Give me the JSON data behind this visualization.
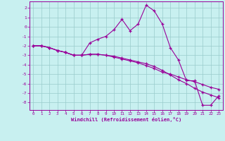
{
  "xlabel": "Windchill (Refroidissement éolien,°C)",
  "bg_color": "#c8f0f0",
  "line_color": "#990099",
  "grid_color": "#99cccc",
  "xlim": [
    -0.5,
    23.5
  ],
  "ylim": [
    -8.8,
    2.7
  ],
  "xtick_vals": [
    0,
    1,
    2,
    3,
    4,
    5,
    6,
    7,
    8,
    9,
    10,
    11,
    12,
    13,
    14,
    15,
    16,
    17,
    18,
    19,
    20,
    21,
    22,
    23
  ],
  "ytick_vals": [
    2,
    1,
    0,
    -1,
    -2,
    -3,
    -4,
    -5,
    -6,
    -7,
    -8
  ],
  "line1_x": [
    0,
    1,
    2,
    3,
    4,
    5,
    6,
    7,
    8,
    9,
    10,
    11,
    12,
    13,
    14,
    15,
    16,
    17,
    18,
    19,
    20,
    21,
    22,
    23
  ],
  "line1_y": [
    -2.0,
    -2.0,
    -2.2,
    -2.5,
    -2.7,
    -3.0,
    -3.0,
    -2.9,
    -2.9,
    -3.0,
    -3.2,
    -3.4,
    -3.6,
    -3.8,
    -4.1,
    -4.4,
    -4.8,
    -5.0,
    -5.3,
    -5.6,
    -5.8,
    -6.1,
    -6.4,
    -6.6
  ],
  "line2_x": [
    0,
    1,
    2,
    3,
    4,
    5,
    6,
    7,
    8,
    9,
    10,
    11,
    12,
    13,
    14,
    15,
    16,
    17,
    18,
    19,
    20,
    21,
    22,
    23
  ],
  "line2_y": [
    -2.0,
    -2.0,
    -2.2,
    -2.5,
    -2.7,
    -3.0,
    -3.0,
    -2.9,
    -2.9,
    -3.0,
    -3.1,
    -3.3,
    -3.5,
    -3.7,
    -3.9,
    -4.2,
    -4.6,
    -5.1,
    -5.6,
    -6.0,
    -6.5,
    -6.9,
    -7.2,
    -7.5
  ],
  "line3_x": [
    0,
    1,
    2,
    3,
    4,
    5,
    6,
    7,
    8,
    9,
    10,
    11,
    12,
    13,
    14,
    15,
    16,
    17,
    18,
    19,
    20,
    21,
    22,
    23
  ],
  "line3_y": [
    -2.0,
    -2.0,
    -2.2,
    -2.5,
    -2.7,
    -3.0,
    -3.0,
    -1.7,
    -1.3,
    -1.0,
    -0.3,
    0.8,
    -0.4,
    0.3,
    2.3,
    1.7,
    0.3,
    -2.2,
    -3.5,
    -5.7,
    -5.7,
    -8.3,
    -8.3,
    -7.3
  ]
}
